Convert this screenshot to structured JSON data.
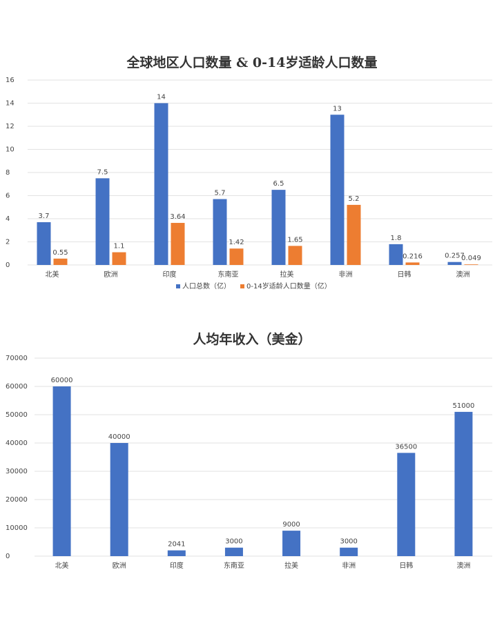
{
  "chart_data": [
    {
      "type": "bar",
      "title": "全球地区人口数量 & 0-14岁适龄人口数量",
      "categories": [
        "北美",
        "欧洲",
        "印度",
        "东南亚",
        "拉美",
        "非洲",
        "日韩",
        "澳洲"
      ],
      "series": [
        {
          "name": "人口总数（亿）",
          "color": "#4472c4",
          "values": [
            3.7,
            7.5,
            14,
            5.7,
            6.5,
            13,
            1.8,
            0.257
          ]
        },
        {
          "name": "0-14岁适龄人口数量（亿）",
          "color": "#ed7d31",
          "values": [
            0.55,
            1.1,
            3.64,
            1.42,
            1.65,
            5.2,
            0.216,
            0.049
          ]
        }
      ],
      "ylim": [
        0,
        16
      ],
      "yticks": [
        0,
        2,
        4,
        6,
        8,
        10,
        12,
        14,
        16
      ],
      "grid": true,
      "legend": "bottom"
    },
    {
      "type": "bar",
      "title": "人均年收入（美金）",
      "categories": [
        "北美",
        "欧洲",
        "印度",
        "东南亚",
        "拉美",
        "非洲",
        "日韩",
        "澳洲"
      ],
      "series": [
        {
          "color": "#4472c4",
          "values": [
            60000,
            40000,
            2041,
            3000,
            9000,
            3000,
            36500,
            51000
          ]
        }
      ],
      "ylim": [
        0,
        70000
      ],
      "yticks": [
        0,
        10000,
        20000,
        30000,
        40000,
        50000,
        60000,
        70000
      ],
      "grid": true
    }
  ]
}
